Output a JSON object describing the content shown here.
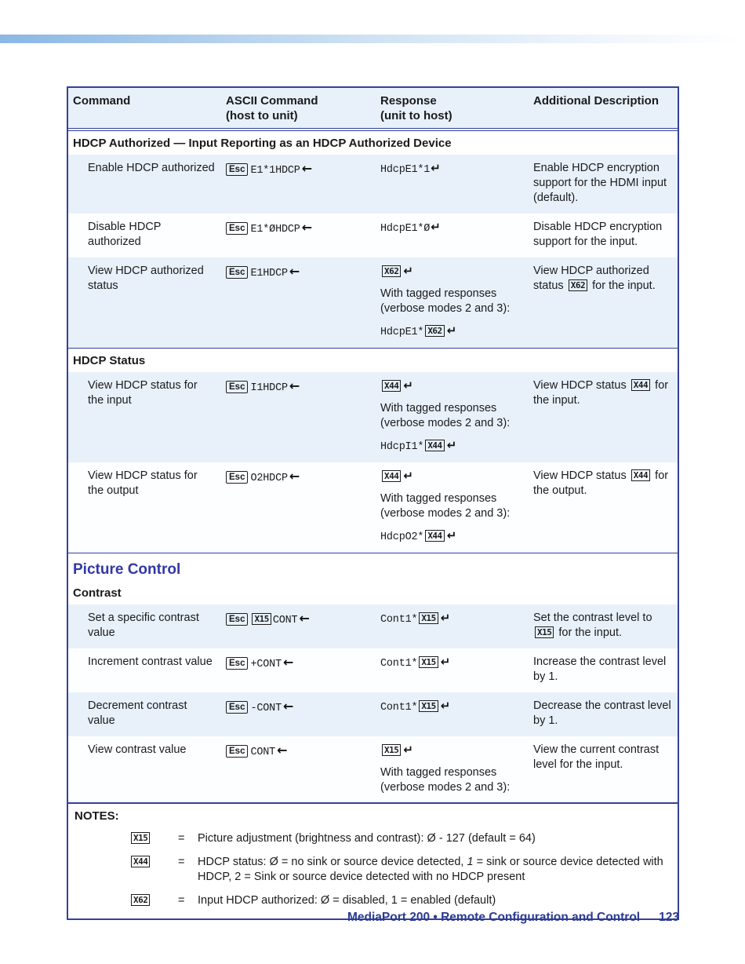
{
  "table": {
    "headers": [
      {
        "lines": [
          "Command"
        ]
      },
      {
        "lines": [
          "ASCII Command",
          "(host to unit)"
        ]
      },
      {
        "lines": [
          "Response",
          "(unit to host)"
        ]
      },
      {
        "lines": [
          "Additional Description"
        ]
      }
    ],
    "sections": [
      {
        "heading": null,
        "subheading": "HDCP Authorized — Input Reporting as an HDCP Authorized Device",
        "rows": [
          {
            "shaded": true,
            "command": "Enable HDCP authorized",
            "ascii": [
              [
                {
                  "k": "key",
                  "v": "Esc"
                },
                {
                  "k": "mono",
                  "v": "E1*1HDCP"
                },
                {
                  "k": "larr"
                }
              ]
            ],
            "response": [
              [
                {
                  "k": "mono",
                  "v": "HdcpE1*1"
                },
                {
                  "k": "ret"
                }
              ]
            ],
            "description": [
              [
                {
                  "k": "text",
                  "v": "Enable HDCP encryption support for the HDMI input (default)."
                }
              ]
            ]
          },
          {
            "shaded": false,
            "command": "Disable HDCP authorized",
            "ascii": [
              [
                {
                  "k": "key",
                  "v": "Esc"
                },
                {
                  "k": "mono",
                  "v": "E1*ØHDCP"
                },
                {
                  "k": "larr"
                }
              ]
            ],
            "response": [
              [
                {
                  "k": "mono",
                  "v": "HdcpE1*Ø"
                },
                {
                  "k": "ret"
                }
              ]
            ],
            "description": [
              [
                {
                  "k": "text",
                  "v": "Disable HDCP encryption support for the input."
                }
              ]
            ]
          },
          {
            "shaded": true,
            "command": "View HDCP authorized status",
            "ascii": [
              [
                {
                  "k": "key",
                  "v": "Esc"
                },
                {
                  "k": "mono",
                  "v": "E1HDCP"
                },
                {
                  "k": "larr"
                }
              ]
            ],
            "response": [
              [
                {
                  "k": "var",
                  "v": "X62"
                },
                {
                  "k": "ret"
                }
              ],
              [
                {
                  "k": "text",
                  "v": "With tagged responses (verbose modes 2 and 3):"
                }
              ],
              [
                {
                  "k": "mono",
                  "v": "HdcpE1*"
                },
                {
                  "k": "var",
                  "v": "X62"
                },
                {
                  "k": "ret"
                }
              ]
            ],
            "description": [
              [
                {
                  "k": "text",
                  "v": "View HDCP authorized status "
                },
                {
                  "k": "var",
                  "v": "X62"
                },
                {
                  "k": "text",
                  "v": " for the input."
                }
              ]
            ]
          }
        ]
      },
      {
        "heading": null,
        "subheading": "HDCP Status",
        "rows": [
          {
            "shaded": true,
            "command": "View HDCP status for the input",
            "ascii": [
              [
                {
                  "k": "key",
                  "v": "Esc"
                },
                {
                  "k": "mono",
                  "v": "I1HDCP"
                },
                {
                  "k": "larr"
                }
              ]
            ],
            "response": [
              [
                {
                  "k": "var",
                  "v": "X44"
                },
                {
                  "k": "ret"
                }
              ],
              [
                {
                  "k": "text",
                  "v": "With tagged responses (verbose modes 2 and 3):"
                }
              ],
              [
                {
                  "k": "mono",
                  "v": "HdcpI1*"
                },
                {
                  "k": "var",
                  "v": "X44"
                },
                {
                  "k": "ret"
                }
              ]
            ],
            "description": [
              [
                {
                  "k": "text",
                  "v": "View HDCP status "
                },
                {
                  "k": "var",
                  "v": "X44"
                },
                {
                  "k": "text",
                  "v": " for the input."
                }
              ]
            ]
          },
          {
            "shaded": false,
            "command": "View HDCP status for the output",
            "ascii": [
              [
                {
                  "k": "key",
                  "v": "Esc"
                },
                {
                  "k": "mono",
                  "v": "O2HDCP"
                },
                {
                  "k": "larr"
                }
              ]
            ],
            "response": [
              [
                {
                  "k": "var",
                  "v": "X44"
                },
                {
                  "k": "ret"
                }
              ],
              [
                {
                  "k": "text",
                  "v": "With tagged responses (verbose modes 2 and 3):"
                }
              ],
              [
                {
                  "k": "mono",
                  "v": "HdcpO2*"
                },
                {
                  "k": "var",
                  "v": "X44"
                },
                {
                  "k": "ret"
                }
              ]
            ],
            "description": [
              [
                {
                  "k": "text",
                  "v": "View HDCP status "
                },
                {
                  "k": "var",
                  "v": "X44"
                },
                {
                  "k": "text",
                  "v": " for the output."
                }
              ]
            ]
          }
        ]
      },
      {
        "heading": "Picture Control",
        "subheading": "Contrast",
        "rows": [
          {
            "shaded": true,
            "command": "Set a specific contrast value",
            "ascii": [
              [
                {
                  "k": "key",
                  "v": "Esc"
                },
                {
                  "k": "var",
                  "v": "X15"
                },
                {
                  "k": "mono",
                  "v": "CONT"
                },
                {
                  "k": "larr"
                }
              ]
            ],
            "response": [
              [
                {
                  "k": "mono",
                  "v": "Cont1*"
                },
                {
                  "k": "var",
                  "v": "X15"
                },
                {
                  "k": "ret"
                }
              ]
            ],
            "description": [
              [
                {
                  "k": "text",
                  "v": "Set the contrast level to "
                },
                {
                  "k": "var",
                  "v": "X15"
                },
                {
                  "k": "text",
                  "v": " for the input."
                }
              ]
            ]
          },
          {
            "shaded": false,
            "command": "Increment contrast value",
            "ascii": [
              [
                {
                  "k": "key",
                  "v": "Esc"
                },
                {
                  "k": "mono",
                  "v": "+CONT"
                },
                {
                  "k": "larr"
                }
              ]
            ],
            "response": [
              [
                {
                  "k": "mono",
                  "v": "Cont1*"
                },
                {
                  "k": "var",
                  "v": "X15"
                },
                {
                  "k": "ret"
                }
              ]
            ],
            "description": [
              [
                {
                  "k": "text",
                  "v": "Increase the contrast level by 1."
                }
              ]
            ]
          },
          {
            "shaded": true,
            "command": "Decrement contrast value",
            "ascii": [
              [
                {
                  "k": "key",
                  "v": "Esc"
                },
                {
                  "k": "mono",
                  "v": "-CONT"
                },
                {
                  "k": "larr"
                }
              ]
            ],
            "response": [
              [
                {
                  "k": "mono",
                  "v": "Cont1*"
                },
                {
                  "k": "var",
                  "v": "X15"
                },
                {
                  "k": "ret"
                }
              ]
            ],
            "description": [
              [
                {
                  "k": "text",
                  "v": "Decrease the contrast level by 1."
                }
              ]
            ]
          },
          {
            "shaded": false,
            "command": "View contrast value",
            "ascii": [
              [
                {
                  "k": "key",
                  "v": "Esc"
                },
                {
                  "k": "mono",
                  "v": "CONT"
                },
                {
                  "k": "larr"
                }
              ]
            ],
            "response": [
              [
                {
                  "k": "var",
                  "v": "X15"
                },
                {
                  "k": "ret"
                }
              ],
              [
                {
                  "k": "text",
                  "v": "With tagged responses (verbose modes 2 and 3):"
                }
              ],
              [
                {
                  "k": "mono",
                  "v": "Cont1*"
                },
                {
                  "k": "var",
                  "v": "X15"
                },
                {
                  "k": "ret"
                }
              ]
            ],
            "description": [
              [
                {
                  "k": "text",
                  "v": "View the current contrast level for the input."
                }
              ]
            ]
          }
        ]
      }
    ]
  },
  "notes": {
    "title": "NOTES:",
    "items": [
      {
        "var": "X15",
        "eq": "=",
        "segments": [
          {
            "k": "text",
            "v": "Picture adjustment (brightness and contrast): Ø - 127 (default = 64)"
          }
        ]
      },
      {
        "var": "X44",
        "eq": "=",
        "segments": [
          {
            "k": "text",
            "v": "HDCP status: Ø = no sink or source device detected, "
          },
          {
            "k": "em",
            "v": "1"
          },
          {
            "k": "text",
            "v": " = sink or source device detected with HDCP, 2 = Sink or source device detected with no HDCP present"
          }
        ]
      },
      {
        "var": "X62",
        "eq": "=",
        "segments": [
          {
            "k": "text",
            "v": "Input HDCP authorized: Ø = disabled, 1 = enabled (default)"
          }
        ]
      }
    ]
  },
  "footer": {
    "title": "MediaPort 200 • Remote Configuration and Control",
    "page_number": "123"
  },
  "colors": {
    "accent_navy": "#35419a",
    "heading_blue": "#3238a5",
    "row_shade": "#e8f1fa",
    "gradient_blue": "#8ab7e4"
  }
}
